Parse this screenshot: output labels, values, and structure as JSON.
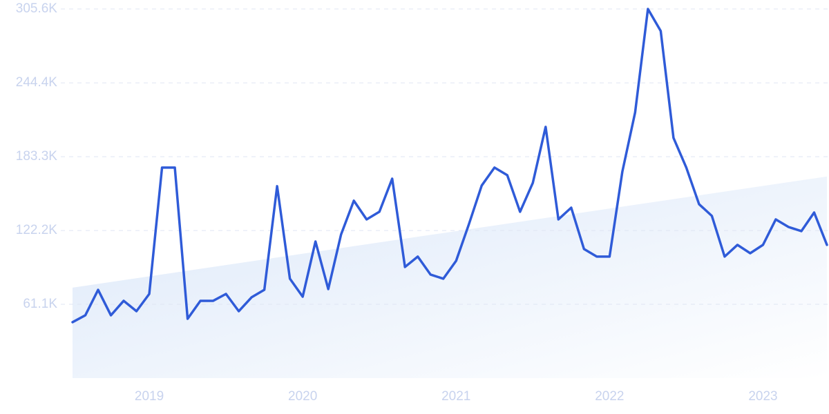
{
  "chart_data": {
    "type": "line",
    "categories": [
      null,
      null,
      null,
      null,
      null,
      null,
      "2019",
      null,
      null,
      null,
      null,
      null,
      null,
      null,
      null,
      null,
      null,
      null,
      "2020",
      null,
      null,
      null,
      null,
      null,
      null,
      null,
      null,
      null,
      null,
      null,
      "2021",
      null,
      null,
      null,
      null,
      null,
      null,
      null,
      null,
      null,
      null,
      null,
      "2022",
      null,
      null,
      null,
      null,
      null,
      null,
      null,
      null,
      null,
      null,
      null,
      "2023",
      null,
      null,
      null,
      null,
      null
    ],
    "values": [
      46300,
      52000,
      73100,
      52000,
      64000,
      55400,
      69700,
      174300,
      174300,
      49100,
      64000,
      64000,
      69700,
      55400,
      66900,
      73100,
      158900,
      82300,
      67400,
      113100,
      73700,
      118900,
      146900,
      131400,
      137700,
      165100,
      92000,
      100600,
      85700,
      82300,
      97100,
      127400,
      159400,
      174300,
      168000,
      137700,
      161700,
      208000,
      131400,
      141100,
      106900,
      100600,
      100600,
      170900,
      220000,
      305600,
      287400,
      198900,
      174300,
      144000,
      134300,
      100600,
      110300,
      103400,
      110300,
      131400,
      125100,
      121700,
      137100,
      110300
    ],
    "color": "#2f5bd8",
    "trend": [
      74900,
      166900
    ],
    "ylim": [
      0,
      305600
    ],
    "yticks": [
      {
        "value": 61100,
        "label": "61.1K"
      },
      {
        "value": 122200,
        "label": "122.2K"
      },
      {
        "value": 183300,
        "label": "183.3K"
      },
      {
        "value": 244400,
        "label": "244.4K"
      },
      {
        "value": 305600,
        "label": "305.6K"
      }
    ],
    "grid": true
  }
}
